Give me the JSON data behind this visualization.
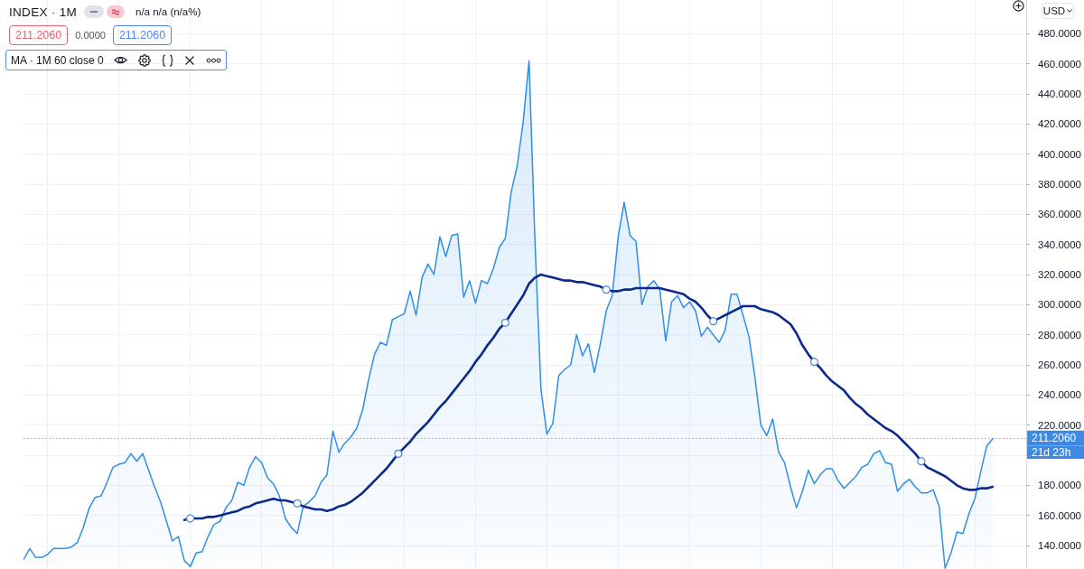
{
  "chart_data": {
    "type": "area",
    "title": "INDEX · 1M",
    "categories": [
      null,
      null,
      null,
      null,
      null,
      null,
      null,
      null,
      null,
      null,
      null,
      null,
      null,
      null,
      null,
      null,
      null,
      null,
      null,
      null,
      null,
      null,
      null,
      null,
      null,
      null,
      null,
      null,
      null,
      null,
      null,
      null,
      null,
      null,
      null,
      null,
      null,
      null,
      null,
      null,
      null,
      null,
      null,
      null,
      null,
      null,
      null,
      null,
      null,
      null,
      null,
      null,
      null,
      null,
      null,
      null,
      null,
      null,
      null,
      null,
      null,
      null,
      null,
      null,
      null,
      null,
      null,
      null,
      null,
      null,
      null,
      null,
      null,
      null,
      null,
      null,
      null,
      null,
      null,
      null,
      null,
      null,
      null,
      null,
      null,
      null,
      null,
      null,
      null,
      null,
      null,
      null,
      null,
      null,
      null,
      null,
      null,
      null,
      null,
      null,
      null,
      null,
      null,
      null,
      null,
      null,
      null,
      null,
      null,
      null,
      null,
      null,
      null,
      null,
      null,
      null,
      null,
      null,
      null,
      null,
      null,
      null,
      null,
      null,
      null,
      null,
      null,
      null,
      null,
      null,
      null,
      null,
      null,
      null,
      null,
      null,
      null,
      null,
      null,
      null,
      null,
      null,
      null,
      null,
      null,
      null,
      null,
      null,
      null,
      null,
      null,
      null,
      null,
      null,
      null,
      null,
      null,
      null,
      null,
      null,
      null,
      null,
      null,
      null
    ],
    "series": [
      {
        "color": "#2f8fe8",
        "values": [
          131,
          138,
          132,
          132,
          134,
          138,
          138,
          138,
          139,
          142,
          152,
          165,
          172,
          173,
          182,
          192,
          194,
          195,
          201,
          196,
          201,
          190,
          179,
          169,
          156,
          143,
          146,
          130,
          126,
          135,
          136,
          146,
          154,
          156,
          165,
          170,
          182,
          180,
          192,
          199,
          195,
          185,
          181,
          173,
          158,
          152,
          148,
          166,
          169,
          173,
          182,
          187,
          216,
          202,
          208,
          212,
          218,
          230,
          250,
          267,
          275,
          273,
          290,
          292,
          294,
          309,
          293,
          318,
          327,
          320,
          345,
          332,
          346,
          347,
          305,
          316,
          301,
          316,
          314,
          324,
          338,
          344,
          375,
          392,
          421,
          462,
          342,
          244,
          214,
          221,
          253,
          257,
          260,
          280,
          266,
          274,
          255,
          274,
          296,
          306,
          345,
          368,
          346,
          342,
          300,
          312,
          316,
          310,
          276,
          302,
          306,
          298,
          302,
          296,
          279,
          285,
          280,
          275,
          283,
          307,
          307,
          293,
          279,
          252,
          220,
          213,
          224,
          202,
          195,
          179,
          165,
          176,
          190,
          181,
          187,
          191,
          191,
          183,
          178,
          182,
          186,
          192,
          194,
          201,
          203,
          195,
          194,
          176,
          181,
          184,
          179,
          175,
          175,
          177,
          166,
          125,
          135,
          149,
          148,
          161,
          171,
          189,
          206,
          211
        ]
      },
      {
        "type": "line",
        "color": "#0b2a8c",
        "values": [
          null,
          null,
          null,
          null,
          null,
          null,
          null,
          null,
          null,
          null,
          null,
          null,
          null,
          null,
          null,
          null,
          null,
          null,
          null,
          null,
          null,
          null,
          null,
          null,
          null,
          null,
          null,
          157,
          158,
          158,
          158,
          159,
          159,
          160,
          161,
          162,
          163,
          165,
          166,
          168,
          169,
          170,
          171,
          170,
          170,
          169,
          168,
          166,
          165,
          164,
          164,
          163,
          164,
          166,
          167,
          169,
          172,
          175,
          179,
          183,
          187,
          191,
          196,
          201,
          205,
          209,
          214,
          218,
          222,
          227,
          232,
          236,
          241,
          246,
          251,
          256,
          262,
          267,
          273,
          278,
          284,
          288,
          294,
          300,
          306,
          314,
          318,
          320,
          319,
          318,
          317,
          316,
          316,
          315,
          315,
          314,
          313,
          312,
          310,
          309,
          309,
          310,
          310,
          311,
          311,
          311,
          311,
          311,
          310,
          309,
          308,
          307,
          304,
          302,
          298,
          293,
          289,
          291,
          293,
          295,
          297,
          299,
          299,
          299,
          297,
          296,
          295,
          293,
          290,
          287,
          281,
          273,
          267,
          262,
          258,
          253,
          249,
          246,
          243,
          238,
          234,
          231,
          227,
          224,
          221,
          218,
          216,
          213,
          209,
          205,
          201,
          196,
          192,
          190,
          188,
          186,
          183,
          180,
          178,
          177,
          177,
          178,
          178,
          179
        ]
      },
      {
        "type": "scatter",
        "color": "#4a86e0",
        "marker": "circle",
        "values": [
          null,
          null,
          null,
          null,
          null,
          null,
          null,
          null,
          null,
          null,
          null,
          null,
          null,
          null,
          null,
          null,
          null,
          null,
          null,
          null,
          null,
          null,
          null,
          null,
          null,
          null,
          null,
          null,
          158,
          null,
          null,
          null,
          null,
          null,
          null,
          null,
          null,
          null,
          null,
          null,
          null,
          null,
          null,
          null,
          null,
          null,
          168,
          null,
          null,
          null,
          null,
          null,
          null,
          null,
          null,
          null,
          null,
          null,
          null,
          null,
          null,
          null,
          null,
          201,
          null,
          null,
          null,
          null,
          null,
          null,
          null,
          null,
          null,
          null,
          null,
          null,
          null,
          null,
          null,
          null,
          null,
          288,
          null,
          null,
          null,
          null,
          null,
          null,
          null,
          null,
          null,
          null,
          null,
          null,
          null,
          null,
          null,
          null,
          310,
          null,
          null,
          null,
          null,
          null,
          null,
          null,
          null,
          null,
          null,
          null,
          null,
          null,
          null,
          null,
          null,
          null,
          289,
          null,
          null,
          null,
          null,
          null,
          null,
          null,
          null,
          null,
          null,
          null,
          null,
          null,
          null,
          null,
          null,
          262,
          null,
          null,
          null,
          null,
          null,
          null,
          null,
          null,
          null,
          null,
          null,
          null,
          null,
          null,
          null,
          null,
          null,
          196,
          null,
          null,
          null,
          null,
          null,
          null,
          null,
          null,
          null,
          null,
          null,
          null
        ]
      }
    ],
    "ylim": [
      124.4,
      502.4
    ],
    "yticks": [
      {
        "value": 140,
        "label": "140.0000"
      },
      {
        "value": 160,
        "label": "160.0000"
      },
      {
        "value": 180,
        "label": "180.0000"
      },
      {
        "value": 200,
        "label": null
      },
      {
        "value": 220,
        "label": "220.0000"
      },
      {
        "value": 240,
        "label": "240.0000"
      },
      {
        "value": 260,
        "label": "260.0000"
      },
      {
        "value": 280,
        "label": "280.0000"
      },
      {
        "value": 300,
        "label": "300.0000"
      },
      {
        "value": 320,
        "label": "320.0000"
      },
      {
        "value": 340,
        "label": "340.0000"
      },
      {
        "value": 360,
        "label": "360.0000"
      },
      {
        "value": 380,
        "label": "380.0000"
      },
      {
        "value": 400,
        "label": "400.0000"
      },
      {
        "value": 420,
        "label": "420.0000"
      },
      {
        "value": 440,
        "label": "440.0000"
      },
      {
        "value": 460,
        "label": "460.0000"
      },
      {
        "value": 480,
        "label": "480.0000"
      }
    ],
    "ref_lines": [
      {
        "axis": "y",
        "value": 211.206,
        "label": "211.2060",
        "color": "#3d8ae6",
        "line_style": "dotted"
      }
    ],
    "annotations": [
      "n/a n/a (n/a%)",
      "211.2060",
      "0.0000",
      "211.2060",
      "MA · 1M 60 close 0",
      "USD",
      "21d 23h"
    ],
    "grid": true,
    "tick_labels": "y"
  }
}
